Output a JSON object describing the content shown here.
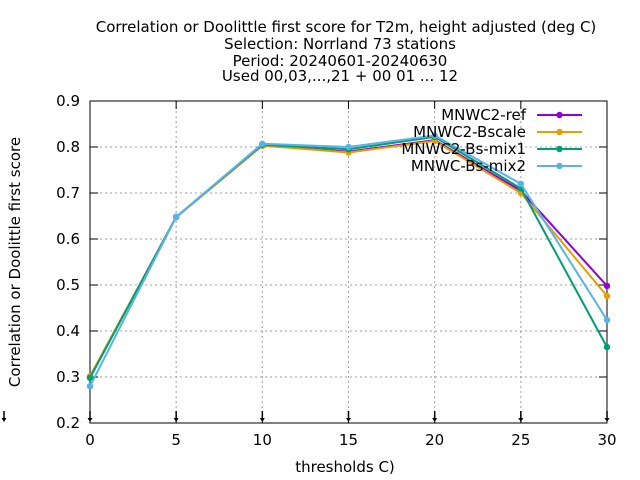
{
  "chart_data": {
    "type": "line",
    "title_lines": [
      "Correlation or Doolittle first score  for T2m, height adjusted (deg C)",
      "Selection: Norrland     73 stations",
      "Period: 20240601-20240630",
      "Used 00,03,...,21 + 00 01 ... 12"
    ],
    "xlabel": "thresholds C)",
    "ylabel": "Correlation or Doolittle first score",
    "x": [
      0,
      5,
      10,
      15,
      20,
      25,
      30
    ],
    "xlim": [
      0,
      30
    ],
    "ylim": [
      0.2,
      0.9
    ],
    "x_ticks": [
      0,
      5,
      10,
      15,
      20,
      25,
      30
    ],
    "y_ticks": [
      0.2,
      0.3,
      0.4,
      0.5,
      0.6,
      0.7,
      0.8,
      0.9
    ],
    "y_tick_labels": [
      "0.2",
      "0.3",
      "0.4",
      "0.5",
      "0.6",
      "0.7",
      "0.8",
      "0.9"
    ],
    "grid": true,
    "legend_position": "top-right",
    "series": [
      {
        "name": "MNWC2-ref",
        "color": "#9400d3",
        "values": [
          0.3,
          0.648,
          0.803,
          0.79,
          0.815,
          0.705,
          0.498
        ]
      },
      {
        "name": "MNWC2-Bscale",
        "color": "#e69f00",
        "values": [
          0.302,
          0.647,
          0.803,
          0.788,
          0.813,
          0.7,
          0.476
        ]
      },
      {
        "name": "MNWC2-Bs-mix1",
        "color": "#009e73",
        "values": [
          0.298,
          0.648,
          0.805,
          0.795,
          0.822,
          0.71,
          0.365
        ]
      },
      {
        "name": "MNWC-Bs-mix2",
        "color": "#56b4e9",
        "values": [
          0.28,
          0.648,
          0.807,
          0.8,
          0.825,
          0.72,
          0.424
        ]
      }
    ]
  }
}
